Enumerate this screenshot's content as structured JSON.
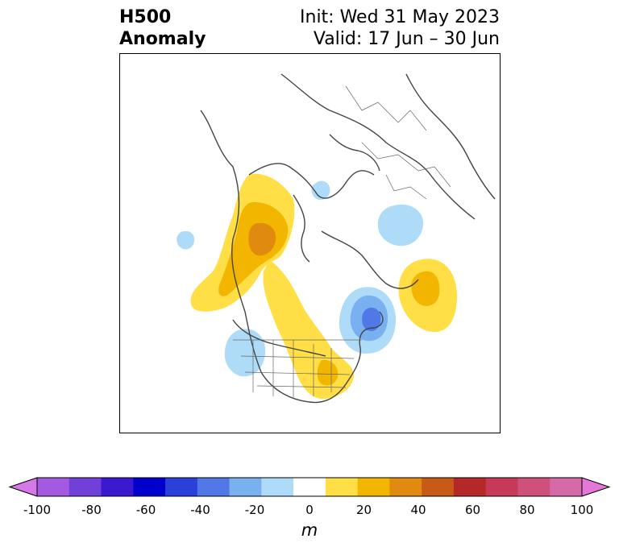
{
  "title": {
    "left_line1": "H500",
    "left_line2": "Anomaly",
    "init": "Init: Wed 31 May 2023",
    "valid": "Valid: 17 Jun – 30 Jun"
  },
  "colorbar": {
    "unit": "m",
    "ticks": [
      "-100",
      "-80",
      "-60",
      "-40",
      "-20",
      "0",
      "20",
      "40",
      "60",
      "80",
      "100"
    ],
    "colors": [
      "#d678e8",
      "#a35ae0",
      "#7040d8",
      "#3c18d0",
      "#0000cc",
      "#2a40d8",
      "#5078e6",
      "#78b0f0",
      "#aedcf8",
      "#ffffff",
      "#ffde46",
      "#f2b600",
      "#e08a10",
      "#c85a18",
      "#b42828",
      "#c63a58",
      "#d0507c",
      "#d66aa8",
      "#e478da"
    ]
  },
  "map": {
    "anomaly_colors": {
      "pos_light": "#ffde46",
      "pos_mid": "#f2b600",
      "pos_strong": "#e08a10",
      "neg_light": "#aedcf8",
      "neg_mid": "#78b0f0",
      "neg_strong": "#5078e6"
    }
  }
}
